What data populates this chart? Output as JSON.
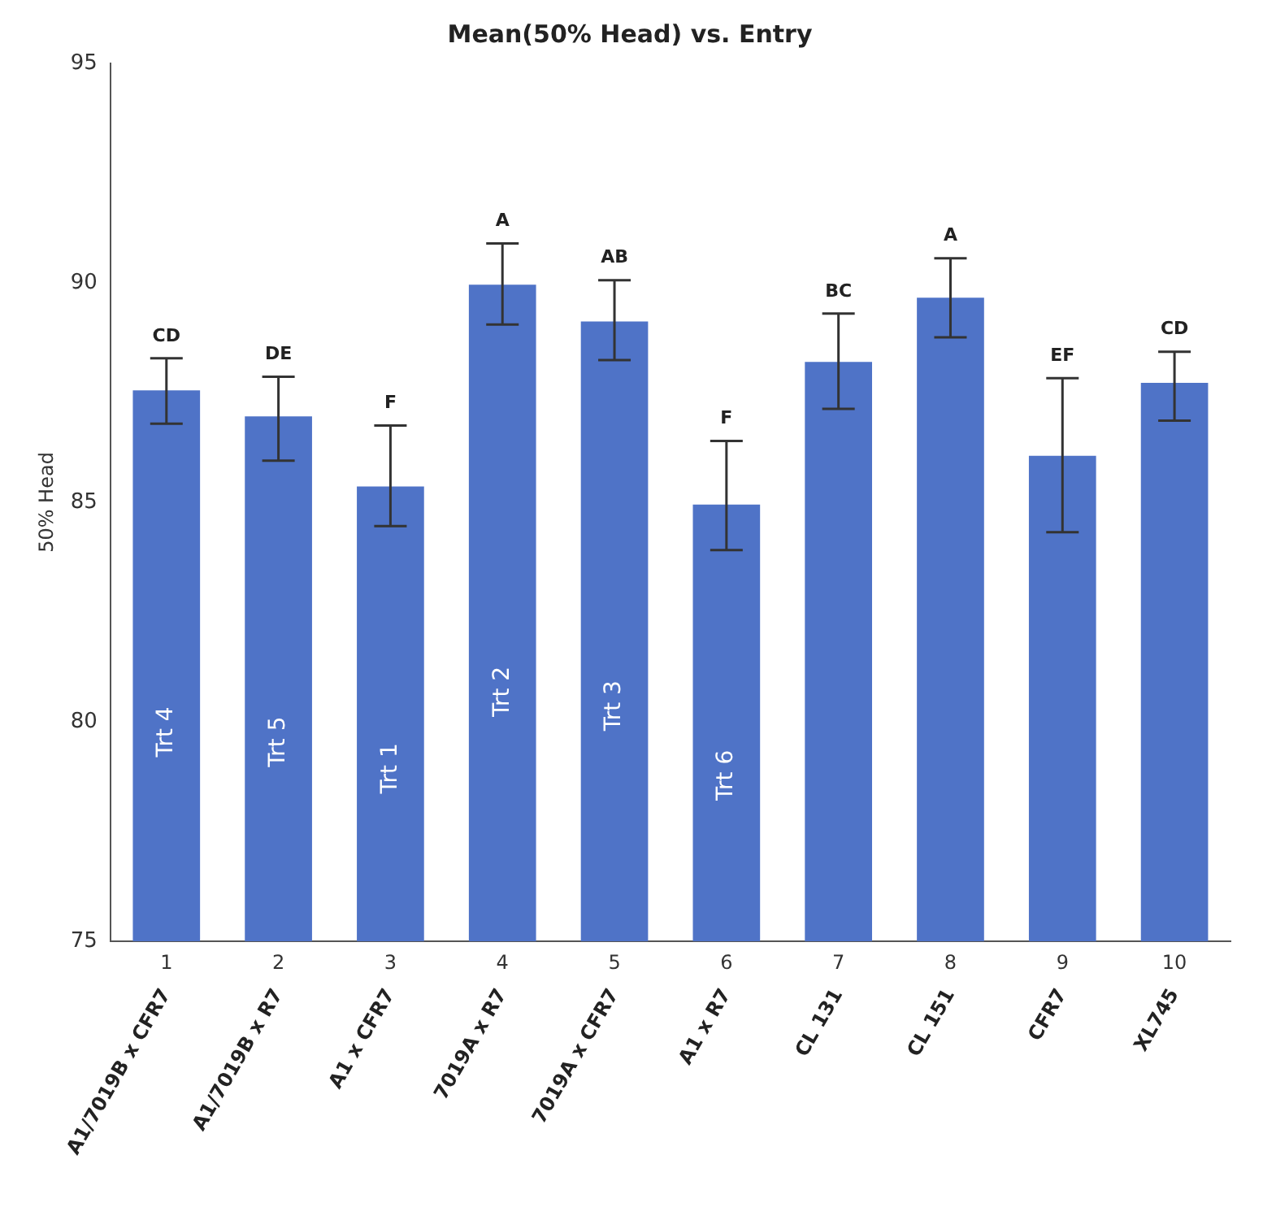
{
  "chart_data": {
    "type": "bar",
    "title": "Mean(50% Head) vs. Entry",
    "ylabel": "50% Head",
    "categories": [
      "A1/7019B x CFR7",
      "A1/7019B x R7",
      "A1 x CFR7",
      "7019A x R7",
      "7019A x CFR7",
      "A1 x R7",
      "CL 131",
      "CL 151",
      "CFR7",
      "XL745"
    ],
    "values": [
      87.55,
      86.96,
      85.36,
      89.96,
      89.12,
      84.95,
      88.2,
      89.66,
      86.06,
      87.72
    ],
    "value_labels": [
      "Trt 4",
      "Trt 5",
      "Trt 1",
      "Trt 2",
      "Trt 3",
      "Trt 6",
      null,
      null,
      null,
      null
    ],
    "errors": [
      [
        86.79,
        88.28
      ],
      [
        85.95,
        87.86
      ],
      [
        84.46,
        86.75
      ],
      [
        89.05,
        90.9
      ],
      [
        88.24,
        90.06
      ],
      [
        83.91,
        86.4
      ],
      [
        87.13,
        89.3
      ],
      [
        88.76,
        90.56
      ],
      [
        84.32,
        87.83
      ],
      [
        86.86,
        88.43
      ]
    ],
    "color": "#4f73c7",
    "ylim": [
      75,
      95
    ],
    "yticks": [
      75,
      80,
      85,
      90,
      95
    ],
    "annotations": [
      {
        "text": "CD",
        "x": "A1/7019B x CFR7",
        "y": 88.28
      },
      {
        "text": "DE",
        "x": "A1/7019B x R7",
        "y": 87.86
      },
      {
        "text": "F",
        "x": "A1 x CFR7",
        "y": 86.75
      },
      {
        "text": "A",
        "x": "7019A x R7",
        "y": 90.9
      },
      {
        "text": "AB",
        "x": "7019A x CFR7",
        "y": 90.06
      },
      {
        "text": "F",
        "x": "A1 x R7",
        "y": 86.4
      },
      {
        "text": "BC",
        "x": "CL 131",
        "y": 89.3
      },
      {
        "text": "A",
        "x": "CL 151",
        "y": 90.56
      },
      {
        "text": "EF",
        "x": "CFR7",
        "y": 87.83
      },
      {
        "text": "CD",
        "x": "XL745",
        "y": 88.43
      },
      "1",
      "2",
      "3",
      "4",
      "5",
      "6",
      "7",
      "8",
      "9",
      "10"
    ]
  }
}
